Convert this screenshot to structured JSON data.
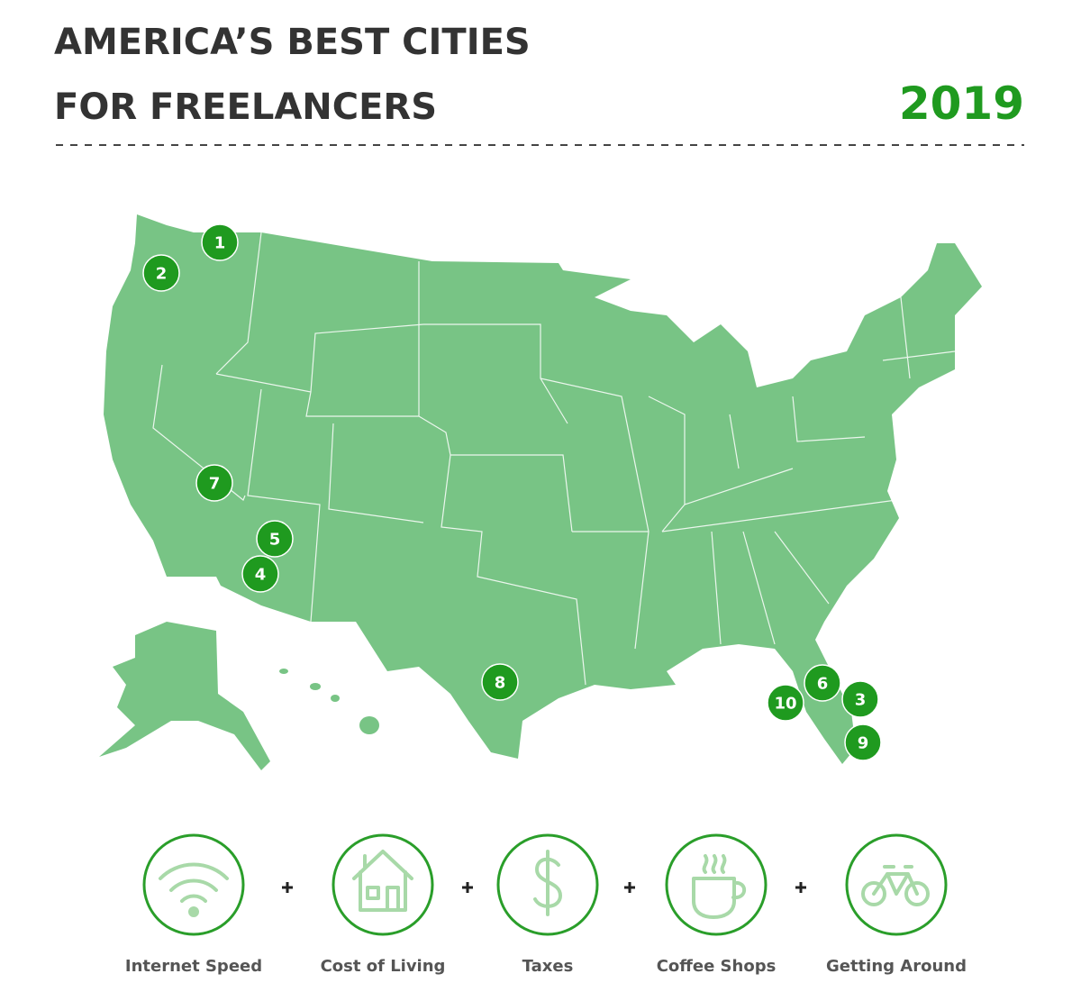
{
  "header": {
    "title_lines": [
      "AMERICA’S BEST CITIES",
      "FOR FREELANCERS"
    ],
    "year": "2019"
  },
  "map": {
    "markers": [
      "1",
      "2",
      "3",
      "4",
      "5",
      "6",
      "7",
      "8",
      "9",
      "10"
    ]
  },
  "factors": [
    "Internet Speed",
    "Cost of Living",
    "Taxes",
    "Coffee Shops",
    "Getting Around"
  ]
}
